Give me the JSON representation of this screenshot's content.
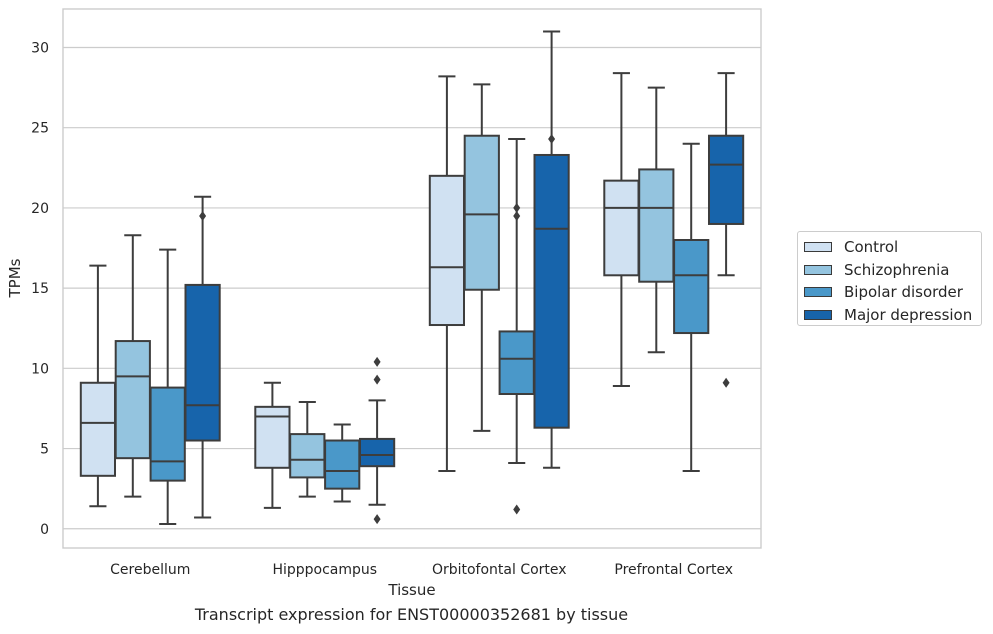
{
  "chart_data": {
    "type": "box",
    "caption": "Transcript expression for ENST00000352681 by tissue",
    "xlabel": "Tissue",
    "ylabel": "TPMs",
    "ylim": [
      -1.2,
      32.4
    ],
    "yticks": [
      0,
      5,
      10,
      15,
      20,
      25,
      30
    ],
    "grid": "horizontal",
    "legend_position": "right",
    "categories": [
      "Cerebellum",
      "Hipppocampus",
      "Orbitofontal Cortex",
      "Prefrontal Cortex"
    ],
    "series": [
      {
        "name": "Control",
        "color": "#d0e1f2",
        "boxes": [
          {
            "whislo": 1.4,
            "q1": 3.3,
            "med": 6.6,
            "q3": 9.1,
            "whishi": 16.4,
            "fliers": []
          },
          {
            "whislo": 1.3,
            "q1": 3.8,
            "med": 7.0,
            "q3": 7.6,
            "whishi": 9.1,
            "fliers": []
          },
          {
            "whislo": 3.6,
            "q1": 12.7,
            "med": 16.3,
            "q3": 22.0,
            "whishi": 28.2,
            "fliers": []
          },
          {
            "whislo": 8.9,
            "q1": 15.8,
            "med": 20.0,
            "q3": 21.7,
            "whishi": 28.4,
            "fliers": []
          }
        ]
      },
      {
        "name": "Schizophrenia",
        "color": "#94c4df",
        "boxes": [
          {
            "whislo": 2.0,
            "q1": 4.4,
            "med": 9.5,
            "q3": 11.7,
            "whishi": 18.3,
            "fliers": []
          },
          {
            "whislo": 2.0,
            "q1": 3.2,
            "med": 4.3,
            "q3": 5.9,
            "whishi": 7.9,
            "fliers": []
          },
          {
            "whislo": 6.1,
            "q1": 14.9,
            "med": 19.6,
            "q3": 24.5,
            "whishi": 27.7,
            "fliers": []
          },
          {
            "whislo": 11.0,
            "q1": 15.4,
            "med": 20.0,
            "q3": 22.4,
            "whishi": 27.5,
            "fliers": []
          }
        ]
      },
      {
        "name": "Bipolar disorder",
        "color": "#4a98c9",
        "boxes": [
          {
            "whislo": 0.3,
            "q1": 3.0,
            "med": 4.2,
            "q3": 8.8,
            "whishi": 17.4,
            "fliers": []
          },
          {
            "whislo": 1.7,
            "q1": 2.5,
            "med": 3.6,
            "q3": 5.5,
            "whishi": 6.5,
            "fliers": []
          },
          {
            "whislo": 4.1,
            "q1": 8.4,
            "med": 10.6,
            "q3": 12.3,
            "whishi": 24.3,
            "fliers": [
              1.2,
              19.5,
              20.0
            ]
          },
          {
            "whislo": 3.6,
            "q1": 12.2,
            "med": 15.8,
            "q3": 18.0,
            "whishi": 24.0,
            "fliers": []
          }
        ]
      },
      {
        "name": "Major depression",
        "color": "#1764ab",
        "boxes": [
          {
            "whislo": 0.7,
            "q1": 5.5,
            "med": 7.7,
            "q3": 15.2,
            "whishi": 20.7,
            "fliers": [
              19.5
            ]
          },
          {
            "whislo": 1.5,
            "q1": 3.9,
            "med": 4.6,
            "q3": 5.6,
            "whishi": 8.0,
            "fliers": [
              0.6,
              10.4,
              9.3
            ]
          },
          {
            "whislo": 3.8,
            "q1": 6.3,
            "med": 18.7,
            "q3": 23.3,
            "whishi": 31.0,
            "fliers": [
              24.3
            ]
          },
          {
            "whislo": 15.8,
            "q1": 19.0,
            "med": 22.7,
            "q3": 24.5,
            "whishi": 28.4,
            "fliers": [
              9.1
            ]
          }
        ]
      }
    ]
  }
}
